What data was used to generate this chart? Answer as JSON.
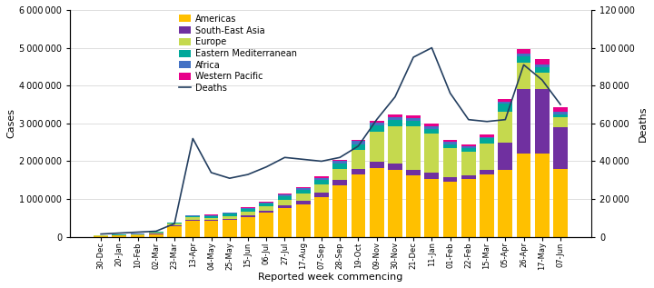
{
  "weeks": [
    "30-Dec",
    "20-Jan",
    "10-Feb",
    "02-Mar",
    "23-Mar",
    "13-Apr",
    "04-May",
    "25-May",
    "15-Jun",
    "06-Jul",
    "27-Jul",
    "17-Aug",
    "07-Sep",
    "28-Sep",
    "19-Oct",
    "09-Nov",
    "30-Nov",
    "21-Dec",
    "11-Jan",
    "01-Feb",
    "22-Feb",
    "15-Mar",
    "05-Apr",
    "26-Apr",
    "17-May",
    "07-Jun"
  ],
  "americas": [
    20000,
    30000,
    40000,
    70000,
    280000,
    430000,
    420000,
    440000,
    520000,
    630000,
    760000,
    870000,
    1060000,
    1360000,
    1640000,
    1820000,
    1760000,
    1620000,
    1540000,
    1470000,
    1520000,
    1640000,
    1780000,
    2200000,
    2200000,
    1800000
  ],
  "south_east_asia": [
    4000,
    6000,
    8000,
    12000,
    16000,
    20000,
    26000,
    36000,
    48000,
    60000,
    72000,
    88000,
    108000,
    136000,
    148000,
    166000,
    173000,
    156000,
    148000,
    118000,
    108000,
    136000,
    700000,
    1700000,
    1700000,
    1100000
  ],
  "europe": [
    10000,
    14000,
    18000,
    30000,
    48000,
    60000,
    60000,
    75000,
    100000,
    120000,
    155000,
    180000,
    220000,
    310000,
    520000,
    800000,
    1000000,
    1150000,
    1050000,
    760000,
    620000,
    680000,
    820000,
    700000,
    440000,
    260000
  ],
  "eastern_mediterranean": [
    6000,
    8000,
    10000,
    14000,
    24000,
    40000,
    50000,
    58000,
    68000,
    78000,
    88000,
    98000,
    115000,
    135000,
    145000,
    155000,
    155000,
    145000,
    118000,
    98000,
    108000,
    145000,
    225000,
    175000,
    135000,
    88000
  ],
  "africa": [
    4000,
    5000,
    7000,
    9000,
    10000,
    12000,
    17000,
    21000,
    26000,
    30000,
    38000,
    47000,
    60000,
    70000,
    80000,
    88000,
    88000,
    80000,
    70000,
    60000,
    50000,
    46000,
    52000,
    70000,
    80000,
    70000
  ],
  "western_pacific": [
    2500,
    3500,
    4500,
    5500,
    7000,
    9000,
    10500,
    13000,
    16000,
    18000,
    22000,
    26000,
    31000,
    36000,
    41000,
    49000,
    58000,
    63000,
    58000,
    49000,
    44000,
    52000,
    70000,
    110000,
    135000,
    115000
  ],
  "deaths": [
    1500,
    2000,
    2500,
    3000,
    7000,
    52000,
    34000,
    31000,
    33000,
    37000,
    42000,
    41000,
    40000,
    42000,
    48000,
    62000,
    74000,
    95000,
    100000,
    76000,
    62000,
    61000,
    62000,
    91000,
    83000,
    70000
  ],
  "colors": {
    "americas": "#FFC000",
    "south_east_asia": "#7030A0",
    "europe": "#C5D94E",
    "eastern_mediterranean": "#00A89A",
    "africa": "#4472C4",
    "western_pacific": "#E8008A"
  },
  "deaths_color": "#243F60",
  "ylim_cases": [
    0,
    6000000
  ],
  "ylim_deaths": [
    0,
    120000
  ],
  "yticks_cases": [
    0,
    1000000,
    2000000,
    3000000,
    4000000,
    5000000,
    6000000
  ],
  "yticks_deaths": [
    0,
    20000,
    40000,
    60000,
    80000,
    100000,
    120000
  ],
  "xlabel": "Reported week commencing",
  "ylabel_left": "Cases",
  "ylabel_right": "Deaths"
}
